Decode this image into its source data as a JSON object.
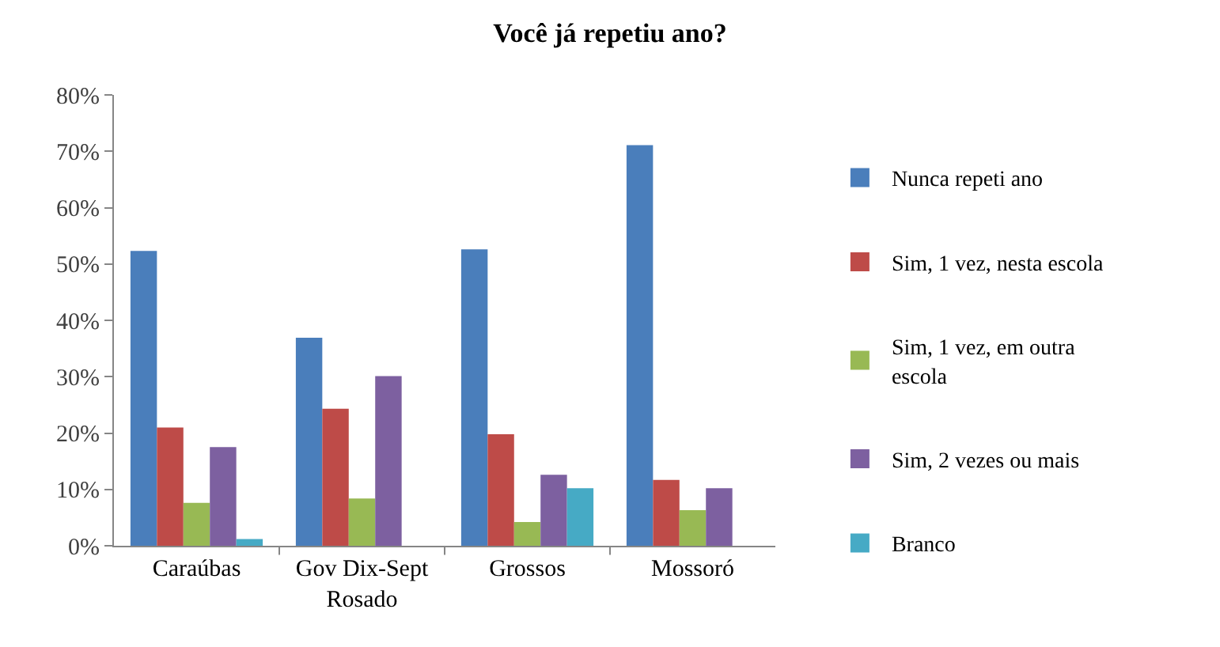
{
  "chart_data": {
    "type": "bar",
    "title": "Você já repetiu ano?",
    "categories": [
      "Caraúbas",
      "Gov Dix-Sept Rosado",
      "Grossos",
      "Mossoró"
    ],
    "series": [
      {
        "name": "Nunca repeti ano",
        "color": "#4a7ebb",
        "values": [
          52.3,
          36.9,
          52.6,
          71.1
        ]
      },
      {
        "name": "Sim, 1 vez, nesta escola",
        "color": "#be4b48",
        "values": [
          21.0,
          24.3,
          19.8,
          11.7
        ]
      },
      {
        "name": "Sim, 1 vez, em outra escola",
        "color": "#98b954",
        "values": [
          7.6,
          8.4,
          4.2,
          6.3
        ]
      },
      {
        "name": "Sim, 2 vezes ou mais",
        "color": "#7d60a0",
        "values": [
          17.5,
          30.1,
          12.6,
          10.2
        ]
      },
      {
        "name": "Branco",
        "color": "#46aac5",
        "values": [
          1.2,
          0,
          10.2,
          0
        ]
      }
    ],
    "ylim": [
      0,
      80
    ],
    "yticks": [
      {
        "value": 0,
        "label": "0%"
      },
      {
        "value": 10,
        "label": "10%"
      },
      {
        "value": 20,
        "label": "20%"
      },
      {
        "value": 30,
        "label": "30%"
      },
      {
        "value": 40,
        "label": "40%"
      },
      {
        "value": 50,
        "label": "50%"
      },
      {
        "value": 60,
        "label": "60%"
      },
      {
        "value": 70,
        "label": "70%"
      },
      {
        "value": 80,
        "label": "80%"
      }
    ],
    "grid": false,
    "legend": "right"
  }
}
